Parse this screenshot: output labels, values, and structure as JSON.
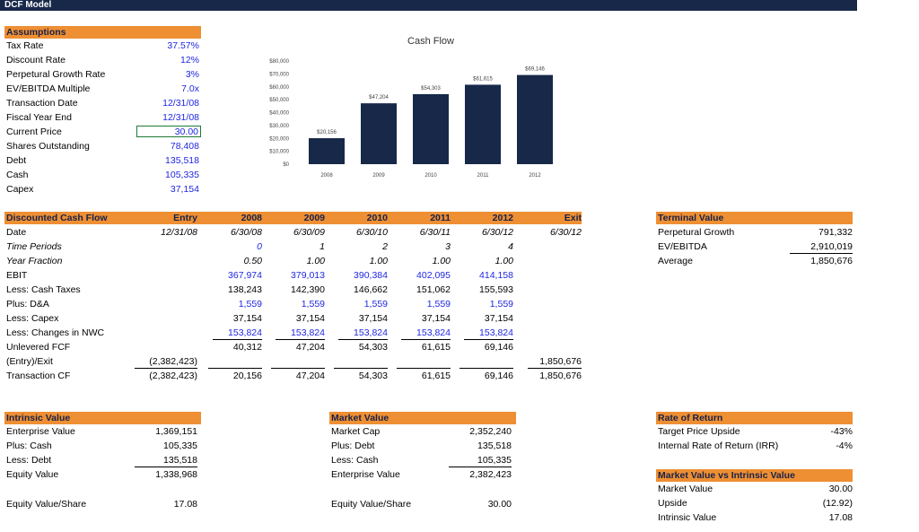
{
  "window_title": "DCF Model",
  "assumptions": {
    "header": "Assumptions",
    "rows": [
      {
        "label": "Tax Rate",
        "value": "37.57%"
      },
      {
        "label": "Discount Rate",
        "value": "12%"
      },
      {
        "label": "Perpetural Growth Rate",
        "value": "3%"
      },
      {
        "label": "EV/EBITDA Multiple",
        "value": "7.0x"
      },
      {
        "label": "Transaction Date",
        "value": "12/31/08"
      },
      {
        "label": "Fiscal Year End",
        "value": "12/31/08"
      },
      {
        "label": "Current Price",
        "value": "30.00"
      },
      {
        "label": "Shares Outstanding",
        "value": "78,408"
      },
      {
        "label": "Debt",
        "value": "135,518"
      },
      {
        "label": "Cash",
        "value": "105,335"
      },
      {
        "label": "Capex",
        "value": "37,154"
      }
    ]
  },
  "chart_data": {
    "type": "bar",
    "title": "Cash Flow",
    "categories": [
      "2008",
      "2009",
      "2010",
      "2011",
      "2012"
    ],
    "values": [
      20156,
      47204,
      54303,
      61615,
      69146
    ],
    "value_labels": [
      "$20,156",
      "$47,204",
      "$54,303",
      "$61,615",
      "$69,146"
    ],
    "ylim": [
      0,
      80000
    ],
    "yticks": [
      "$0",
      "$10,000",
      "$20,000",
      "$30,000",
      "$40,000",
      "$50,000",
      "$60,000",
      "$70,000",
      "$80,000"
    ],
    "color": "#172849"
  },
  "dcf": {
    "header": "Discounted Cash Flow",
    "columns": [
      "Entry",
      "2008",
      "2009",
      "2010",
      "2011",
      "2012",
      "Exit"
    ],
    "rows": [
      {
        "label": "Date",
        "cells": [
          "12/31/08",
          "6/30/08",
          "6/30/09",
          "6/30/10",
          "6/30/11",
          "6/30/12",
          "6/30/12"
        ]
      },
      {
        "label": "Time Periods",
        "cells": [
          "",
          "0",
          "1",
          "2",
          "3",
          "4",
          ""
        ]
      },
      {
        "label": "Year Fraction",
        "cells": [
          "",
          "0.50",
          "1.00",
          "1.00",
          "1.00",
          "1.00",
          ""
        ]
      },
      {
        "label": "EBIT",
        "cells": [
          "",
          "367,974",
          "379,013",
          "390,384",
          "402,095",
          "414,158",
          ""
        ]
      },
      {
        "label": "Less: Cash Taxes",
        "cells": [
          "",
          "138,243",
          "142,390",
          "146,662",
          "151,062",
          "155,593",
          ""
        ]
      },
      {
        "label": "Plus: D&A",
        "cells": [
          "",
          "1,559",
          "1,559",
          "1,559",
          "1,559",
          "1,559",
          ""
        ]
      },
      {
        "label": "Less: Capex",
        "cells": [
          "",
          "37,154",
          "37,154",
          "37,154",
          "37,154",
          "37,154",
          ""
        ]
      },
      {
        "label": "Less: Changes in NWC",
        "cells": [
          "",
          "153,824",
          "153,824",
          "153,824",
          "153,824",
          "153,824",
          ""
        ]
      },
      {
        "label": "Unlevered FCF",
        "cells": [
          "",
          "40,312",
          "47,204",
          "54,303",
          "61,615",
          "69,146",
          ""
        ]
      },
      {
        "label": "(Entry)/Exit",
        "cells": [
          "(2,382,423)",
          "",
          "",
          "",
          "",
          "",
          "1,850,676"
        ]
      },
      {
        "label": "Transaction CF",
        "cells": [
          "(2,382,423)",
          "20,156",
          "47,204",
          "54,303",
          "61,615",
          "69,146",
          "1,850,676"
        ]
      }
    ]
  },
  "terminal": {
    "header": "Terminal Value",
    "rows": [
      {
        "label": "Perpetural Growth",
        "value": "791,332"
      },
      {
        "label": "EV/EBITDA",
        "value": "2,910,019"
      },
      {
        "label": "Average",
        "value": "1,850,676"
      }
    ]
  },
  "intrinsic": {
    "header": "Intrinsic Value",
    "rows": [
      {
        "label": "Enterprise Value",
        "value": "1,369,151"
      },
      {
        "label": "Plus: Cash",
        "value": "105,335"
      },
      {
        "label": "Less: Debt",
        "value": "135,518"
      },
      {
        "label": "Equity Value",
        "value": "1,338,968"
      }
    ],
    "per_share_label": "Equity Value/Share",
    "per_share_value": "17.08"
  },
  "market": {
    "header": "Market Value",
    "rows": [
      {
        "label": "Market Cap",
        "value": "2,352,240"
      },
      {
        "label": "Plus: Debt",
        "value": "135,518"
      },
      {
        "label": "Less: Cash",
        "value": "105,335"
      },
      {
        "label": "Enterprise Value",
        "value": "2,382,423"
      }
    ],
    "per_share_label": "Equity Value/Share",
    "per_share_value": "30.00"
  },
  "rate_of_return": {
    "header": "Rate of Return",
    "rows": [
      {
        "label": "Target Price Upside",
        "value": "-43%"
      },
      {
        "label": "Internal Rate of Return (IRR)",
        "value": "-4%"
      }
    ]
  },
  "mv_vs_iv": {
    "header": "Market Value vs Intrinsic Value",
    "rows": [
      {
        "label": "Market Value",
        "value": "30.00"
      },
      {
        "label": "Upside",
        "value": "(12.92)"
      },
      {
        "label": "Intrinsic Value",
        "value": "17.08"
      }
    ]
  }
}
